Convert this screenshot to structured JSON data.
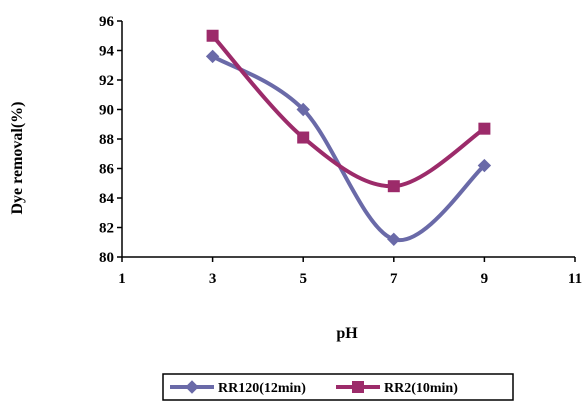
{
  "chart_data": {
    "type": "line",
    "title": "",
    "xlabel": "pH",
    "ylabel": "Dye removal(%)",
    "xlim": [
      1,
      11
    ],
    "ylim": [
      80,
      96
    ],
    "xticks": [
      "1",
      "3",
      "5",
      "7",
      "9",
      "11"
    ],
    "yticks": [
      "80",
      "82",
      "84",
      "86",
      "88",
      "90",
      "92",
      "94",
      "96"
    ],
    "grid": false,
    "legend_position": "bottom",
    "series": [
      {
        "name": "RR120(12min)",
        "color": "#6a6aa8",
        "marker": "diamond",
        "smooth": true,
        "x": [
          3,
          5,
          7,
          9
        ],
        "values": [
          93.6,
          90.0,
          81.2,
          86.2
        ]
      },
      {
        "name": "RR2(10min)",
        "color": "#9c2b6a",
        "marker": "square",
        "smooth": true,
        "x": [
          3,
          5,
          7,
          9
        ],
        "values": [
          95.0,
          88.1,
          84.8,
          88.7
        ]
      }
    ]
  }
}
